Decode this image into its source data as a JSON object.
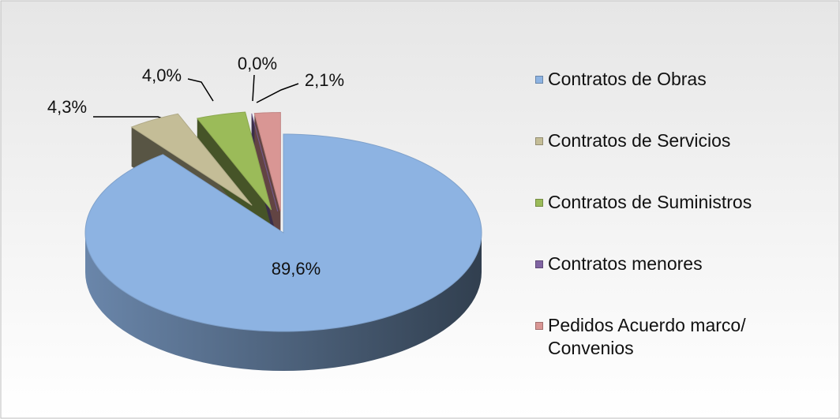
{
  "chart_data": {
    "type": "pie3d",
    "categories": [
      "Contratos de Obras",
      "Contratos de Servicios",
      "Contratos de Suministros",
      "Contratos menores",
      "Pedidos Acuerdo marco/ Convenios"
    ],
    "values": [
      89.6,
      4.3,
      4.0,
      0.0,
      2.1
    ],
    "value_labels": [
      "89,6%",
      "4,3%",
      "4,0%",
      "0,0%",
      "2,1%"
    ],
    "colors": [
      "#8db3e2",
      "#c4bd97",
      "#9bbb59",
      "#8064a2",
      "#d99694"
    ],
    "legend": "right"
  }
}
